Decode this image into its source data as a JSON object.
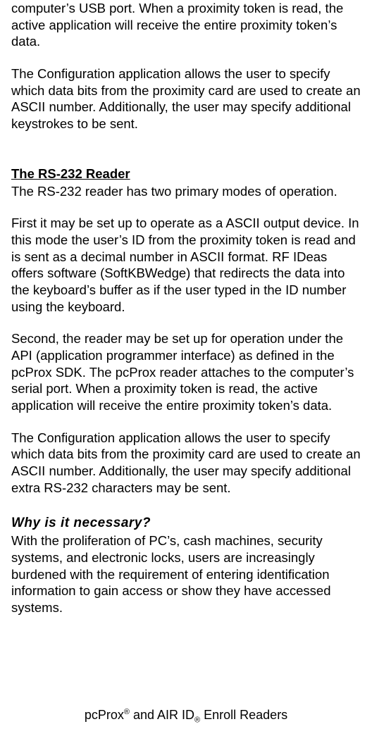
{
  "intro_p1": "computer’s USB port. When a proximity token is read, the active application will receive the entire proximity token’s data.",
  "intro_p2": "The Configuration application allows the user to specify which data bits from the proximity card are used to create an ASCII number. Additionally, the user may specify additional keystrokes to be sent.",
  "rs232_heading": "The RS-232 Reader",
  "rs232_p1": "The RS-232 reader has two primary modes of operation.",
  "rs232_p2": "First it may be set up to operate as a ASCII output device. In this mode the user’s ID from the proximity token is read and is sent as a decimal number in ASCII format. RF IDeas offers software (SoftKBWedge) that redirects the data into the keyboard’s buffer as if the user typed in the ID number using the keyboard.",
  "rs232_p3": "Second, the reader may be set up for operation under the API (application programmer interface) as defined in the pcProx SDK. The pcProx reader attaches to the computer’s serial port. When a proximity token is read, the active application will receive the entire proximity token’s data.",
  "rs232_p4": "The Configuration application allows the user to specify which data bits from the proximity card are used to create an ASCII number. Additionally, the user may specify additional extra RS-232 characters may be sent.",
  "why_heading": "Why is it necessary?",
  "why_p1": "With the proliferation of PC’s, cash machines, security systems, and electronic locks, users are increasingly burdened with the requirement of entering identification information to gain access or show they have accessed systems.",
  "footer_part1": "pcProx",
  "footer_sup": "®",
  "footer_part2": " and AIR ID",
  "footer_sub": "®",
  "footer_part3": " Enroll Readers"
}
